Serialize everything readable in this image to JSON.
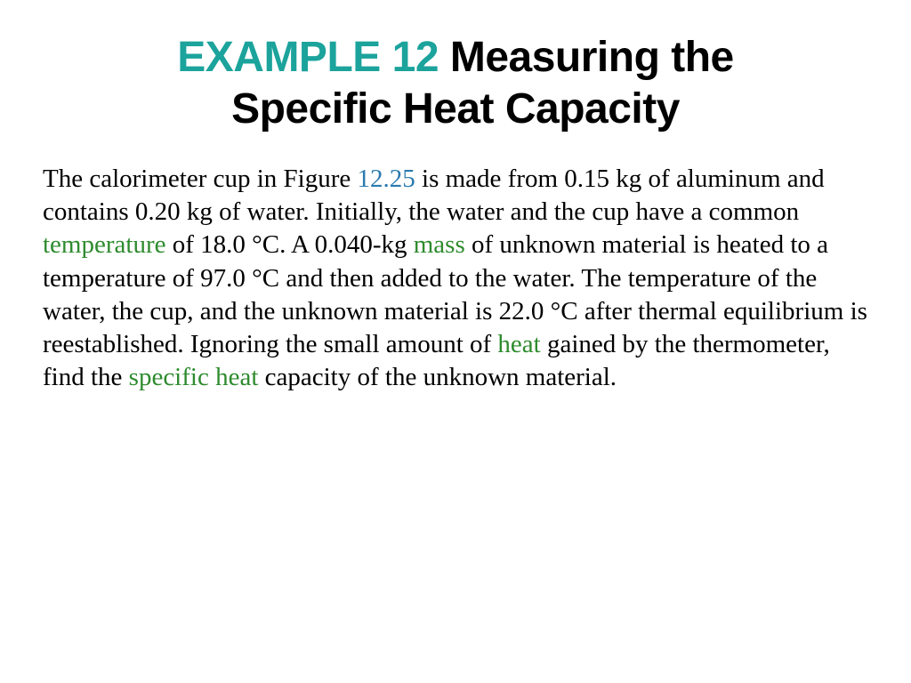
{
  "slide": {
    "title_accent": "EXAMPLE 12",
    "title_rest_line1": " Measuring the",
    "title_line2": "Specific Heat Capacity",
    "accent_color": "#1ba39c",
    "link_blue_color": "#2a7ab0",
    "link_green_color": "#2e8b2e",
    "body_fontsize": 29,
    "title_fontsize": 48,
    "background_color": "#ffffff",
    "body": {
      "p1a": "The calorimeter cup in Figure ",
      "fig_ref": "12.25",
      "p1b": " is made from 0.15 kg of aluminum and contains 0.20 kg of water. Initially, the water and the cup have a common ",
      "kw_temperature": "temperature",
      "p1c": " of 18.0 °C. A 0.040-kg ",
      "kw_mass": "mass",
      "p1d": " of unknown material is heated to a temperature of 97.0 °C and then added to the water. The temperature of the water, the cup, and the unknown material is 22.0 °C after thermal equilibrium is reestablished. Ignoring the small amount of ",
      "kw_heat": "heat",
      "p1e": " gained by the thermometer, find the ",
      "kw_specific_heat": "specific heat",
      "p1f": " capacity of the unknown material."
    }
  }
}
